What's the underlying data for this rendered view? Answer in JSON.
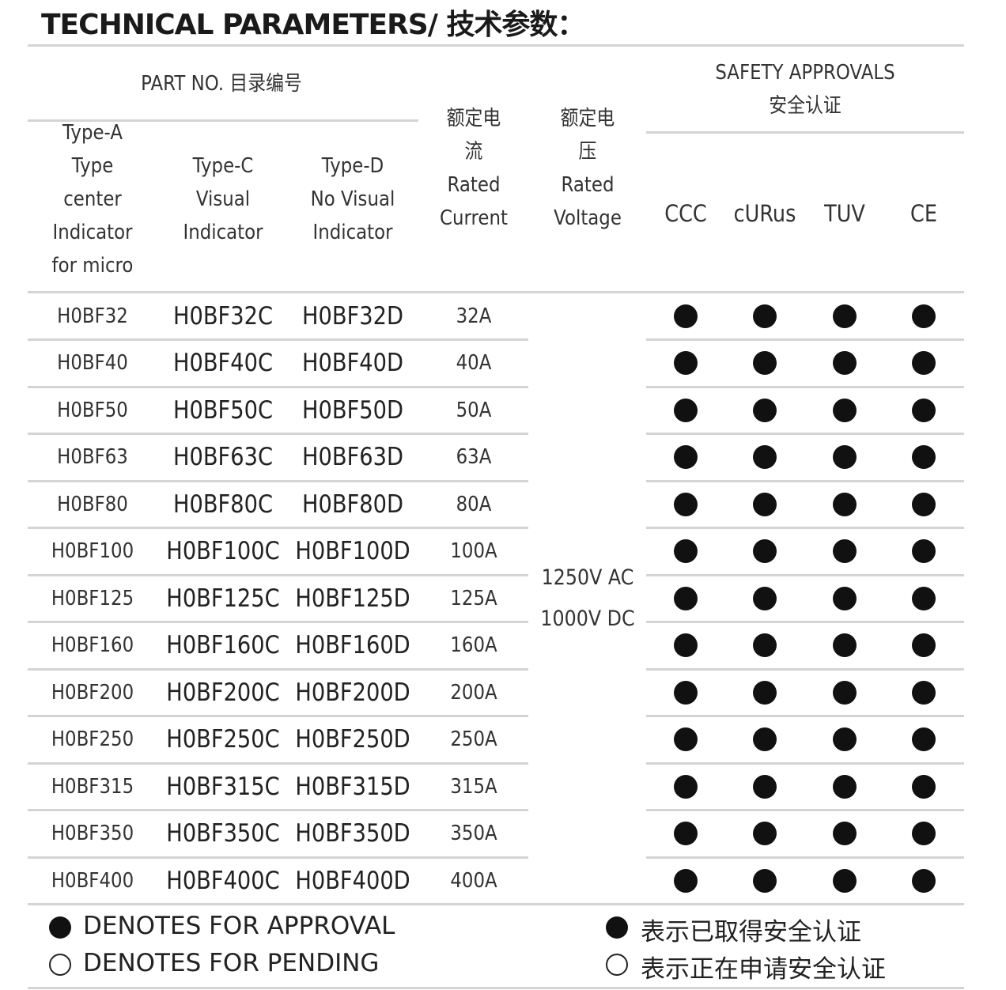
{
  "title": "TECHNICAL PARAMETERS/ 技术参数：",
  "header": {
    "part_no": "PART  NO. 目录编号",
    "type_a": [
      "Type-A",
      "Type",
      "center",
      "Indicator",
      "for micro"
    ],
    "type_c": [
      "Type-C",
      "Visual",
      "Indicator"
    ],
    "type_d": [
      "Type-D",
      "No Visual",
      "Indicator"
    ],
    "current": [
      "额定电",
      "流",
      "Rated",
      "Current"
    ],
    "voltage": [
      "额定电",
      "压",
      "Rated",
      "Voltage"
    ],
    "safety": [
      "SAFETY APPROVALS",
      "安全认证"
    ],
    "approvals": [
      "CCC",
      "cURus",
      "TUV",
      "CE"
    ]
  },
  "rated_voltage": [
    "1250V AC",
    "1000V DC"
  ],
  "rows": [
    {
      "a": "H0BF32",
      "c": "H0BF32C",
      "d": "H0BF32D",
      "current": "32A",
      "approvals": [
        "approved",
        "approved",
        "approved",
        "approved"
      ]
    },
    {
      "a": "H0BF40",
      "c": "H0BF40C",
      "d": "H0BF40D",
      "current": "40A",
      "approvals": [
        "approved",
        "approved",
        "approved",
        "approved"
      ]
    },
    {
      "a": "H0BF50",
      "c": "H0BF50C",
      "d": "H0BF50D",
      "current": "50A",
      "approvals": [
        "approved",
        "approved",
        "approved",
        "approved"
      ]
    },
    {
      "a": "H0BF63",
      "c": "H0BF63C",
      "d": "H0BF63D",
      "current": "63A",
      "approvals": [
        "approved",
        "approved",
        "approved",
        "approved"
      ]
    },
    {
      "a": "H0BF80",
      "c": "H0BF80C",
      "d": "H0BF80D",
      "current": "80A",
      "approvals": [
        "approved",
        "approved",
        "approved",
        "approved"
      ]
    },
    {
      "a": "H0BF100",
      "c": "H0BF100C",
      "d": "H0BF100D",
      "current": "100A",
      "approvals": [
        "approved",
        "approved",
        "approved",
        "approved"
      ]
    },
    {
      "a": "H0BF125",
      "c": "H0BF125C",
      "d": "H0BF125D",
      "current": "125A",
      "approvals": [
        "approved",
        "approved",
        "approved",
        "approved"
      ]
    },
    {
      "a": "H0BF160",
      "c": "H0BF160C",
      "d": "H0BF160D",
      "current": "160A",
      "approvals": [
        "approved",
        "approved",
        "approved",
        "approved"
      ]
    },
    {
      "a": "H0BF200",
      "c": "H0BF200C",
      "d": "H0BF200D",
      "current": "200A",
      "approvals": [
        "approved",
        "approved",
        "approved",
        "approved"
      ]
    },
    {
      "a": "H0BF250",
      "c": "H0BF250C",
      "d": "H0BF250D",
      "current": "250A",
      "approvals": [
        "approved",
        "approved",
        "approved",
        "approved"
      ]
    },
    {
      "a": "H0BF315",
      "c": "H0BF315C",
      "d": "H0BF315D",
      "current": "315A",
      "approvals": [
        "approved",
        "approved",
        "approved",
        "approved"
      ]
    },
    {
      "a": "H0BF350",
      "c": "H0BF350C",
      "d": "H0BF350D",
      "current": "350A",
      "approvals": [
        "approved",
        "approved",
        "approved",
        "approved"
      ]
    },
    {
      "a": "H0BF400",
      "c": "H0BF400C",
      "d": "H0BF400D",
      "current": "400A",
      "approvals": [
        "approved",
        "approved",
        "approved",
        "approved"
      ]
    }
  ],
  "legend": {
    "approval_en": "DENOTES FOR APPROVAL",
    "pending_en": "DENOTES FOR PENDING",
    "approval_cn": "表示已取得安全认证",
    "pending_cn": "表示正在申请安全认证"
  },
  "colors": {
    "dot": "#111111",
    "rule": "#d4d4d4"
  }
}
